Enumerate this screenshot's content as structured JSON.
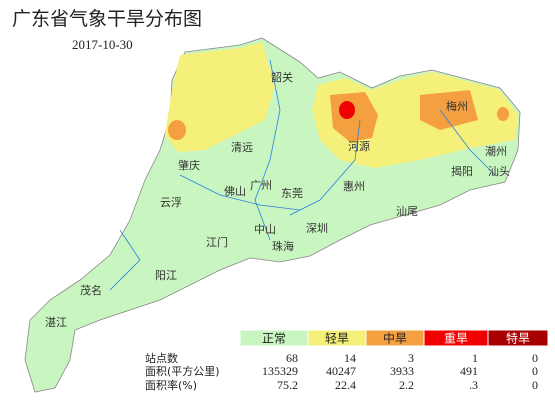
{
  "header": {
    "title": "广东省气象干旱分布图",
    "date": "2017-10-30"
  },
  "cities": [
    "韶关",
    "梅州",
    "清远",
    "河源",
    "潮州",
    "肇庆",
    "揭阳",
    "汕头",
    "佛山",
    "广州",
    "东莞",
    "惠州",
    "云浮",
    "汕尾",
    "中山",
    "深圳",
    "珠海",
    "江门",
    "阳江",
    "茂名",
    "湛江"
  ],
  "legend": {
    "levels": [
      {
        "label": "正常",
        "color": "#c8f5c0"
      },
      {
        "label": "轻旱",
        "color": "#f5f07a"
      },
      {
        "label": "中旱",
        "color": "#f5a040"
      },
      {
        "label": "重旱",
        "color": "#f00000"
      },
      {
        "label": "特旱",
        "color": "#a80000"
      }
    ]
  },
  "table": {
    "rows": [
      {
        "label": "站点数",
        "values": [
          "68",
          "14",
          "3",
          "1",
          "0"
        ]
      },
      {
        "label": "面积(平方公里)",
        "values": [
          "135329",
          "40247",
          "3933",
          "491",
          "0"
        ]
      },
      {
        "label": "面积率(%)",
        "values": [
          "75.2",
          "22.4",
          "2.2",
          ".3",
          "0"
        ]
      }
    ]
  }
}
